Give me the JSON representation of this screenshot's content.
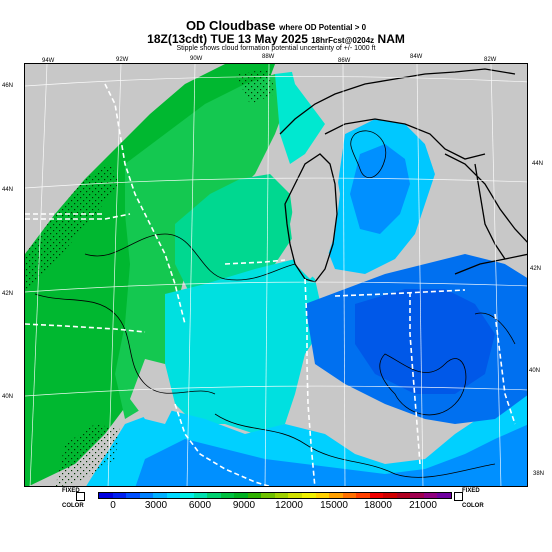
{
  "header": {
    "title": "OD Cloudbase",
    "title_note": "where OD Potential > 0",
    "run_time": "18Z(13cdt) TUE 13 May 2025",
    "run_info": "18hrFcst@0204z",
    "model": "NAM",
    "subtitle": "Stipple shows cloud formation potential uncertainty of +/- 1000 ft"
  },
  "map": {
    "lon_labels_top": [
      "94W",
      "92W",
      "90W",
      "88W",
      "86W",
      "84W",
      "82W"
    ],
    "lat_labels_left": [
      "46N",
      "44N",
      "42N",
      "40N"
    ],
    "lat_labels_right": [
      "44N",
      "42N",
      "40N",
      "38N"
    ]
  },
  "colorbar": {
    "left_label_top": "FIXED",
    "left_label_bottom": "COLOR",
    "right_label_top": "FIXED",
    "right_label_bottom": "COLOR",
    "ticks": [
      "0",
      "3000",
      "6000",
      "9000",
      "12000",
      "15000",
      "18000",
      "21000"
    ],
    "colors": [
      "#0000e0",
      "#0020f0",
      "#0050ff",
      "#0080ff",
      "#00b0ff",
      "#00d8ff",
      "#00f0e8",
      "#00e0b0",
      "#00d070",
      "#00c040",
      "#00b020",
      "#30b000",
      "#70c000",
      "#a0d000",
      "#d0e000",
      "#f0f000",
      "#ffd000",
      "#ffa000",
      "#ff7000",
      "#ff4000",
      "#f00000",
      "#d00000",
      "#b00020",
      "#a00050",
      "#900080",
      "#7000a0"
    ]
  }
}
